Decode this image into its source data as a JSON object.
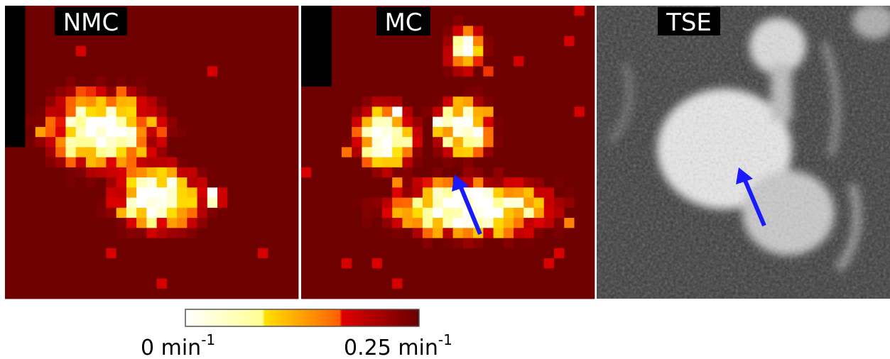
{
  "panels": [
    {
      "label": "NMC"
    },
    {
      "label": "MC"
    },
    {
      "label": "TSE"
    }
  ],
  "colorbar": {
    "min_label": {
      "text": "0 min",
      "sup": "-1"
    },
    "max_label": {
      "text": "0.25 min",
      "sup": "-1"
    }
  }
}
